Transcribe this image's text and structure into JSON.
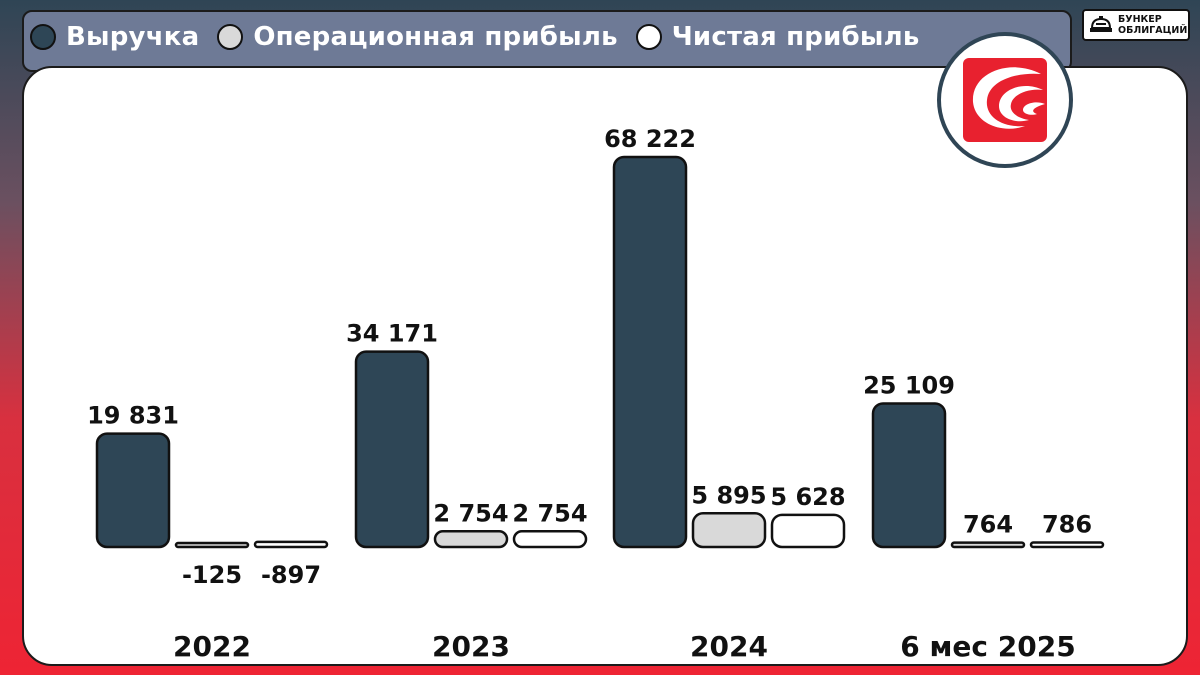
{
  "chart_data": {
    "type": "bar",
    "categories": [
      "2022",
      "2023",
      "2024",
      "6 мес 2025"
    ],
    "series": [
      {
        "name": "Выручка",
        "color": "#2e4656",
        "values": [
          19831,
          34171,
          68222,
          25109
        ],
        "labels": [
          "19 831",
          "34 171",
          "68 222",
          "25 109"
        ]
      },
      {
        "name": "Операционная прибыль",
        "color": "#d9d9d9",
        "values": [
          -125,
          2754,
          5895,
          764
        ],
        "labels": [
          "-125",
          "2 754",
          "5 895",
          "764"
        ]
      },
      {
        "name": "Чистая прибыль",
        "color": "#ffffff",
        "values": [
          -897,
          2754,
          5628,
          786
        ],
        "labels": [
          "-897",
          "2 754",
          "5 628",
          "786"
        ]
      }
    ]
  },
  "brand": {
    "line1": "БУНКЕР",
    "line2": "ОБЛИГАЦИЙ"
  },
  "icons": {
    "brand": "bunker-icon",
    "company": "company-logo"
  }
}
